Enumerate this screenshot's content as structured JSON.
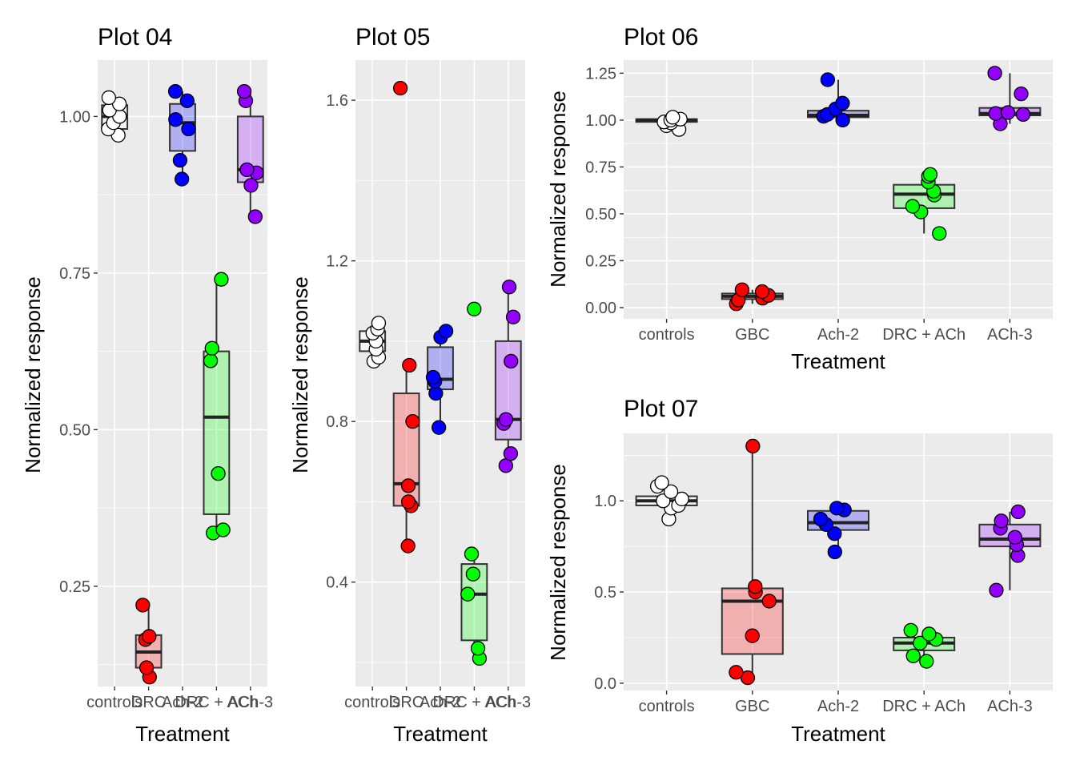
{
  "colors": {
    "panel_bg": "#ebebeb",
    "grid": "#ffffff",
    "controls": "#ffffff",
    "GBC": "#ff0000",
    "DRC": "#ff0000",
    "Ach-2": "#0000ff",
    "DRC + ACh": "#00ff00",
    "ACh-3": "#9400ff"
  },
  "chart_data": [
    {
      "type": "box",
      "title": "Plot 04",
      "xlabel": "Treatment",
      "ylabel": "Normalized response",
      "categories": [
        "controls",
        "DRC",
        "Ach-2",
        "DRC + ACh",
        "ACh-3"
      ],
      "ylim": [
        0.09,
        1.09
      ],
      "yticks": [
        0.25,
        0.5,
        0.75,
        1.0
      ],
      "ytick_labels": [
        "0.25",
        "0.50",
        "0.75",
        "1.00"
      ],
      "series": [
        {
          "category": "controls",
          "q1": 0.98,
          "median": 1.0,
          "q3": 1.018,
          "whisker_low": 0.97,
          "whisker_high": 1.03,
          "points": [
            0.97,
            0.98,
            0.99,
            1.0,
            1.01,
            1.02,
            1.03
          ]
        },
        {
          "category": "DRC",
          "q1": 0.12,
          "median": 0.145,
          "q3": 0.172,
          "whisker_low": 0.105,
          "whisker_high": 0.22,
          "points": [
            0.105,
            0.12,
            0.165,
            0.17,
            0.22
          ]
        },
        {
          "category": "Ach-2",
          "q1": 0.945,
          "median": 0.99,
          "q3": 1.02,
          "whisker_low": 0.9,
          "whisker_high": 1.04,
          "points": [
            0.9,
            0.93,
            0.98,
            0.995,
            1.025,
            1.04
          ]
        },
        {
          "category": "DRC + ACh",
          "q1": 0.365,
          "median": 0.52,
          "q3": 0.625,
          "whisker_low": 0.335,
          "whisker_high": 0.74,
          "points": [
            0.335,
            0.34,
            0.43,
            0.61,
            0.63,
            0.74
          ]
        },
        {
          "category": "ACh-3",
          "q1": 0.895,
          "median": 0.915,
          "q3": 1.0,
          "whisker_low": 0.84,
          "whisker_high": 1.04,
          "points": [
            0.84,
            0.89,
            0.91,
            0.915,
            1.025,
            1.04
          ]
        }
      ]
    },
    {
      "type": "box",
      "title": "Plot 05",
      "xlabel": "Treatment",
      "ylabel": "Normalized response",
      "categories": [
        "controls",
        "DRC",
        "Ach-2",
        "DRC + ACh",
        "ACh-3"
      ],
      "ylim": [
        0.14,
        1.7
      ],
      "yticks": [
        0.4,
        0.8,
        1.2,
        1.6
      ],
      "ytick_labels": [
        "0.4",
        "0.8",
        "1.2",
        "1.6"
      ],
      "series": [
        {
          "category": "controls",
          "q1": 0.975,
          "median": 1.0,
          "q3": 1.025,
          "whisker_low": 0.95,
          "whisker_high": 1.045,
          "points": [
            0.95,
            0.96,
            0.98,
            1.0,
            1.02,
            1.03,
            1.045
          ]
        },
        {
          "category": "DRC",
          "q1": 0.59,
          "median": 0.645,
          "q3": 0.87,
          "whisker_low": 0.49,
          "whisker_high": 0.94,
          "points": [
            0.49,
            0.59,
            0.6,
            0.64,
            0.8,
            0.94,
            1.63
          ]
        },
        {
          "category": "Ach-2",
          "q1": 0.88,
          "median": 0.905,
          "q3": 0.985,
          "whisker_low": 0.785,
          "whisker_high": 1.025,
          "points": [
            0.785,
            0.87,
            0.9,
            0.91,
            1.01,
            1.025
          ]
        },
        {
          "category": "DRC + ACh",
          "q1": 0.255,
          "median": 0.37,
          "q3": 0.445,
          "whisker_low": 0.21,
          "whisker_high": 0.47,
          "points": [
            0.21,
            0.235,
            0.37,
            0.42,
            0.47,
            1.08
          ]
        },
        {
          "category": "ACh-3",
          "q1": 0.755,
          "median": 0.805,
          "q3": 1.0,
          "whisker_low": 0.69,
          "whisker_high": 1.135,
          "points": [
            0.69,
            0.72,
            0.795,
            0.805,
            0.95,
            1.06,
            1.135
          ]
        }
      ]
    },
    {
      "type": "box",
      "title": "Plot 06",
      "xlabel": "Treatment",
      "ylabel": "Normalized response",
      "categories": [
        "controls",
        "GBC",
        "Ach-2",
        "DRC + ACh",
        "ACh-3"
      ],
      "ylim": [
        -0.06,
        1.32
      ],
      "yticks": [
        0.0,
        0.25,
        0.5,
        0.75,
        1.0,
        1.25
      ],
      "ytick_labels": [
        "0.00",
        "0.25",
        "0.50",
        "0.75",
        "1.00",
        "1.25"
      ],
      "series": [
        {
          "category": "controls",
          "q1": 0.99,
          "median": 1.0,
          "q3": 1.005,
          "whisker_low": 0.95,
          "whisker_high": 1.02,
          "points": [
            0.95,
            0.97,
            0.985,
            0.99,
            1.0,
            1.005,
            1.015
          ]
        },
        {
          "category": "GBC",
          "q1": 0.045,
          "median": 0.06,
          "q3": 0.075,
          "whisker_low": 0.02,
          "whisker_high": 0.095,
          "points": [
            0.02,
            0.04,
            0.05,
            0.065,
            0.085,
            0.095
          ]
        },
        {
          "category": "Ach-2",
          "q1": 1.015,
          "median": 1.025,
          "q3": 1.05,
          "whisker_low": 1.0,
          "whisker_high": 1.215,
          "points": [
            1.0,
            1.02,
            1.03,
            1.06,
            1.09,
            1.215
          ]
        },
        {
          "category": "DRC + ACh",
          "q1": 0.53,
          "median": 0.605,
          "q3": 0.655,
          "whisker_low": 0.395,
          "whisker_high": 0.71,
          "points": [
            0.395,
            0.51,
            0.54,
            0.6,
            0.62,
            0.67,
            0.7,
            0.71
          ]
        },
        {
          "category": "ACh-3",
          "q1": 1.025,
          "median": 1.035,
          "q3": 1.065,
          "whisker_low": 0.98,
          "whisker_high": 1.25,
          "points": [
            0.98,
            1.03,
            1.035,
            1.04,
            1.14,
            1.25
          ]
        }
      ]
    },
    {
      "type": "box",
      "title": "Plot 07",
      "xlabel": "Treatment",
      "ylabel": "Normalized response",
      "categories": [
        "controls",
        "GBC",
        "Ach-2",
        "DRC + ACh",
        "ACh-3"
      ],
      "ylim": [
        -0.04,
        1.37
      ],
      "yticks": [
        0.0,
        0.5,
        1.0
      ],
      "ytick_labels": [
        "0.0",
        "0.5",
        "1.0"
      ],
      "series": [
        {
          "category": "controls",
          "q1": 0.975,
          "median": 1.0,
          "q3": 1.025,
          "whisker_low": 0.9,
          "whisker_high": 1.1,
          "points": [
            0.9,
            0.96,
            0.975,
            1.0,
            1.01,
            1.05,
            1.08,
            1.1
          ]
        },
        {
          "category": "GBC",
          "q1": 0.16,
          "median": 0.45,
          "q3": 0.52,
          "whisker_low": 0.03,
          "whisker_high": 1.3,
          "points": [
            0.03,
            0.06,
            0.26,
            0.45,
            0.5,
            0.53,
            1.3
          ]
        },
        {
          "category": "Ach-2",
          "q1": 0.84,
          "median": 0.88,
          "q3": 0.945,
          "whisker_low": 0.72,
          "whisker_high": 0.96,
          "points": [
            0.72,
            0.82,
            0.87,
            0.9,
            0.95,
            0.96
          ]
        },
        {
          "category": "DRC + ACh",
          "q1": 0.18,
          "median": 0.22,
          "q3": 0.25,
          "whisker_low": 0.12,
          "whisker_high": 0.29,
          "points": [
            0.12,
            0.15,
            0.22,
            0.24,
            0.27,
            0.29
          ]
        },
        {
          "category": "ACh-3",
          "q1": 0.75,
          "median": 0.79,
          "q3": 0.87,
          "whisker_low": 0.51,
          "whisker_high": 0.94,
          "points": [
            0.51,
            0.7,
            0.76,
            0.8,
            0.85,
            0.89,
            0.94
          ]
        }
      ]
    }
  ]
}
